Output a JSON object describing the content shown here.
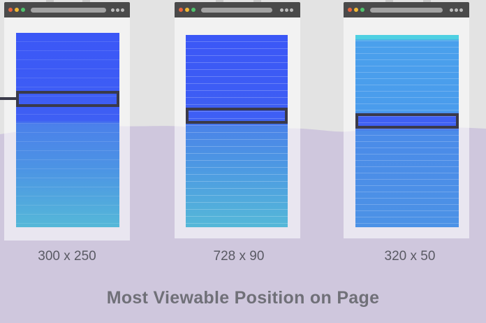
{
  "panels": [
    {
      "size_label": "300 x 250"
    },
    {
      "size_label": "728 x 90"
    },
    {
      "size_label": "320 x 50"
    }
  ],
  "caption": "Most Viewable Position on Page",
  "colors": {
    "background": "#e3e3e3",
    "fold_overlay": "#cfc7dd",
    "titlebar": "#4a4a4a",
    "ad_frame": "#3a3a4a",
    "above_fold_blue": "#3f5cf5",
    "below_fold_teal": "#56b5dc"
  },
  "icons": {
    "window_buttons": [
      "close-dot",
      "minimize-dot",
      "maximize-dot"
    ],
    "menu": "ellipsis-menu-icon"
  }
}
